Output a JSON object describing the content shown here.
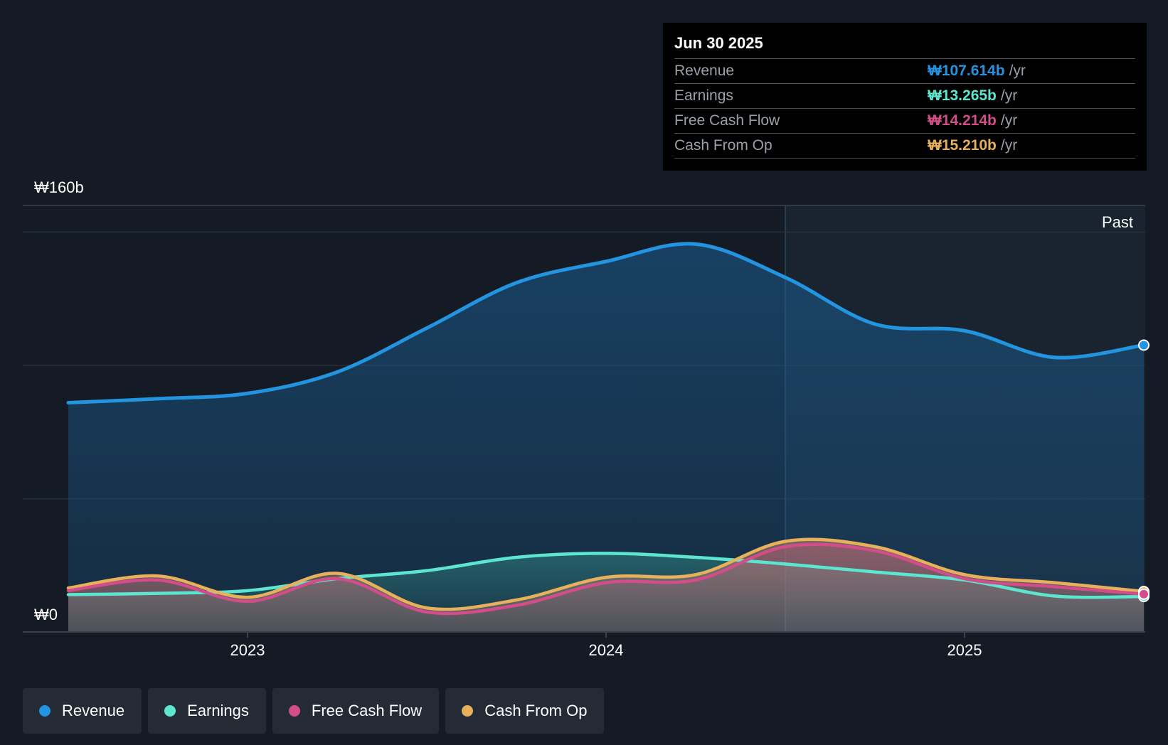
{
  "chart_data": {
    "type": "area",
    "currency_symbol": "₩",
    "y_unit": "b",
    "ylim": [
      0,
      160
    ],
    "y_tick_labels": {
      "top": "₩160b",
      "bottom": "₩0"
    },
    "gridlines": [
      0,
      50,
      100,
      150,
      160
    ],
    "x_range": [
      2022.5,
      2025.5
    ],
    "x_tick_labels": [
      {
        "label": "2023",
        "x": 2023.0
      },
      {
        "label": "2024",
        "x": 2024.0
      },
      {
        "label": "2025",
        "x": 2025.0
      }
    ],
    "past_region_start": 2024.5,
    "past_label": "Past",
    "series": [
      {
        "name": "Revenue",
        "color": "#2394e0",
        "points": [
          [
            2022.5,
            86.0
          ],
          [
            2022.75,
            87.5
          ],
          [
            2023.0,
            89.5
          ],
          [
            2023.25,
            97.5
          ],
          [
            2023.5,
            114.0
          ],
          [
            2023.75,
            131.0
          ],
          [
            2024.0,
            139.0
          ],
          [
            2024.25,
            145.5
          ],
          [
            2024.5,
            133.0
          ],
          [
            2024.75,
            115.5
          ],
          [
            2025.0,
            113.0
          ],
          [
            2025.25,
            103.0
          ],
          [
            2025.5,
            107.6
          ]
        ]
      },
      {
        "name": "Earnings",
        "color": "#5ce6d0",
        "points": [
          [
            2022.5,
            14.0
          ],
          [
            2022.75,
            14.5
          ],
          [
            2023.0,
            15.5
          ],
          [
            2023.25,
            20.0
          ],
          [
            2023.5,
            23.0
          ],
          [
            2023.75,
            28.0
          ],
          [
            2024.0,
            29.5
          ],
          [
            2024.25,
            28.0
          ],
          [
            2024.5,
            25.5
          ],
          [
            2024.75,
            22.5
          ],
          [
            2025.0,
            19.5
          ],
          [
            2025.25,
            13.5
          ],
          [
            2025.5,
            13.3
          ]
        ]
      },
      {
        "name": "Free Cash Flow",
        "color": "#d24d8a",
        "points": [
          [
            2022.5,
            15.5
          ],
          [
            2022.75,
            19.5
          ],
          [
            2023.0,
            11.5
          ],
          [
            2023.25,
            20.0
          ],
          [
            2023.5,
            7.5
          ],
          [
            2023.75,
            10.0
          ],
          [
            2024.0,
            18.5
          ],
          [
            2024.25,
            19.5
          ],
          [
            2024.5,
            32.0
          ],
          [
            2024.75,
            30.5
          ],
          [
            2025.0,
            20.0
          ],
          [
            2025.25,
            17.0
          ],
          [
            2025.5,
            14.2
          ]
        ]
      },
      {
        "name": "Cash From Op",
        "color": "#e8b05a",
        "points": [
          [
            2022.5,
            16.5
          ],
          [
            2022.75,
            21.0
          ],
          [
            2023.0,
            13.0
          ],
          [
            2023.25,
            22.0
          ],
          [
            2023.5,
            9.0
          ],
          [
            2023.75,
            12.0
          ],
          [
            2024.0,
            20.5
          ],
          [
            2024.25,
            21.5
          ],
          [
            2024.5,
            34.0
          ],
          [
            2024.75,
            32.0
          ],
          [
            2025.0,
            21.5
          ],
          [
            2025.25,
            18.5
          ],
          [
            2025.5,
            15.2
          ]
        ]
      }
    ],
    "tooltip": {
      "date": "Jun 30 2025",
      "rows": [
        {
          "label": "Revenue",
          "value": "₩107.614b",
          "unit": "/yr",
          "color": "#2394e0"
        },
        {
          "label": "Earnings",
          "value": "₩13.265b",
          "unit": "/yr",
          "color": "#5ce6d0"
        },
        {
          "label": "Free Cash Flow",
          "value": "₩14.214b",
          "unit": "/yr",
          "color": "#d24d8a"
        },
        {
          "label": "Cash From Op",
          "value": "₩15.210b",
          "unit": "/yr",
          "color": "#e8b05a"
        }
      ]
    },
    "legend": [
      {
        "label": "Revenue",
        "color": "#2394e0"
      },
      {
        "label": "Earnings",
        "color": "#5ce6d0"
      },
      {
        "label": "Free Cash Flow",
        "color": "#d24d8a"
      },
      {
        "label": "Cash From Op",
        "color": "#e8b05a"
      }
    ]
  }
}
